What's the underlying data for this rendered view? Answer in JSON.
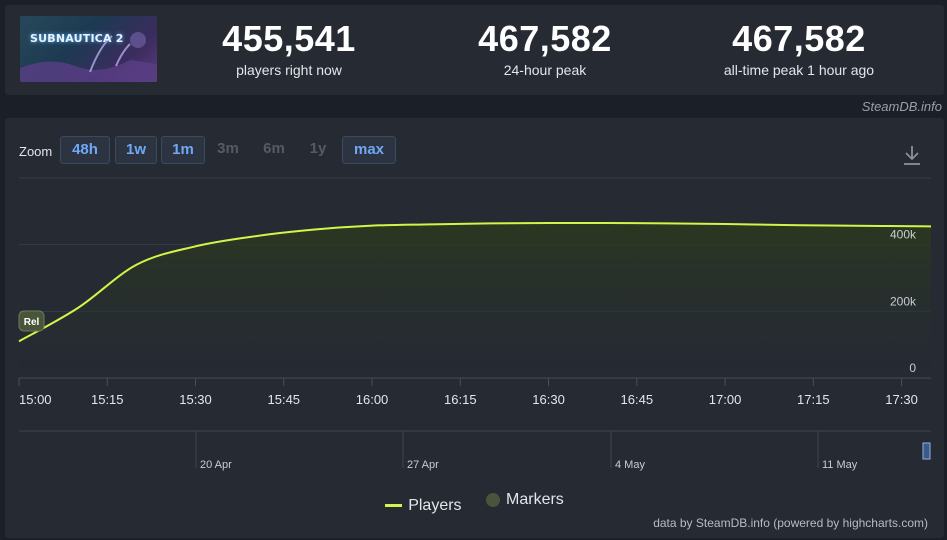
{
  "game": {
    "logo_text": "SUBNAUTICA 2"
  },
  "stats": [
    {
      "value": "455,541",
      "label": "players right now"
    },
    {
      "value": "467,582",
      "label": "24-hour peak"
    },
    {
      "value": "467,582",
      "label": "all-time peak 1 hour ago"
    }
  ],
  "watermark": "SteamDB.info",
  "zoom": {
    "label": "Zoom",
    "buttons": [
      {
        "label": "48h",
        "enabled": true
      },
      {
        "label": "1w",
        "enabled": true
      },
      {
        "label": "1m",
        "enabled": true
      },
      {
        "label": "3m",
        "enabled": false
      },
      {
        "label": "6m",
        "enabled": false
      },
      {
        "label": "1y",
        "enabled": false
      },
      {
        "label": "max",
        "enabled": true
      }
    ]
  },
  "colors": {
    "series_line": "#d4f44a",
    "marker": "#48553a",
    "accent": "#6fa8f5"
  },
  "chart_data": {
    "type": "area",
    "x": [
      "15:00",
      "15:10",
      "15:20",
      "15:30",
      "15:40",
      "15:50",
      "16:00",
      "16:10",
      "16:20",
      "16:30",
      "16:40",
      "16:50",
      "17:00",
      "17:10",
      "17:20",
      "17:35"
    ],
    "series": [
      {
        "name": "Players",
        "values": [
          110000,
          210000,
          340000,
          395000,
          425000,
          445000,
          457000,
          461000,
          464000,
          465000,
          465000,
          464000,
          462000,
          459000,
          457000,
          455000
        ]
      }
    ],
    "ylim": [
      0,
      600000
    ],
    "y_ticks": [
      "0",
      "200k",
      "400k"
    ],
    "x_ticks": [
      "15:00",
      "15:15",
      "15:30",
      "15:45",
      "16:00",
      "16:15",
      "16:30",
      "16:45",
      "17:00",
      "17:15",
      "17:30"
    ],
    "marker_label": "Rel",
    "navigator_ticks": [
      "20 Apr",
      "27 Apr",
      "4 May",
      "11 May"
    ],
    "legend": [
      "Players",
      "Markers"
    ],
    "grid": true
  },
  "credit": "data by SteamDB.info (powered by highcharts.com)"
}
